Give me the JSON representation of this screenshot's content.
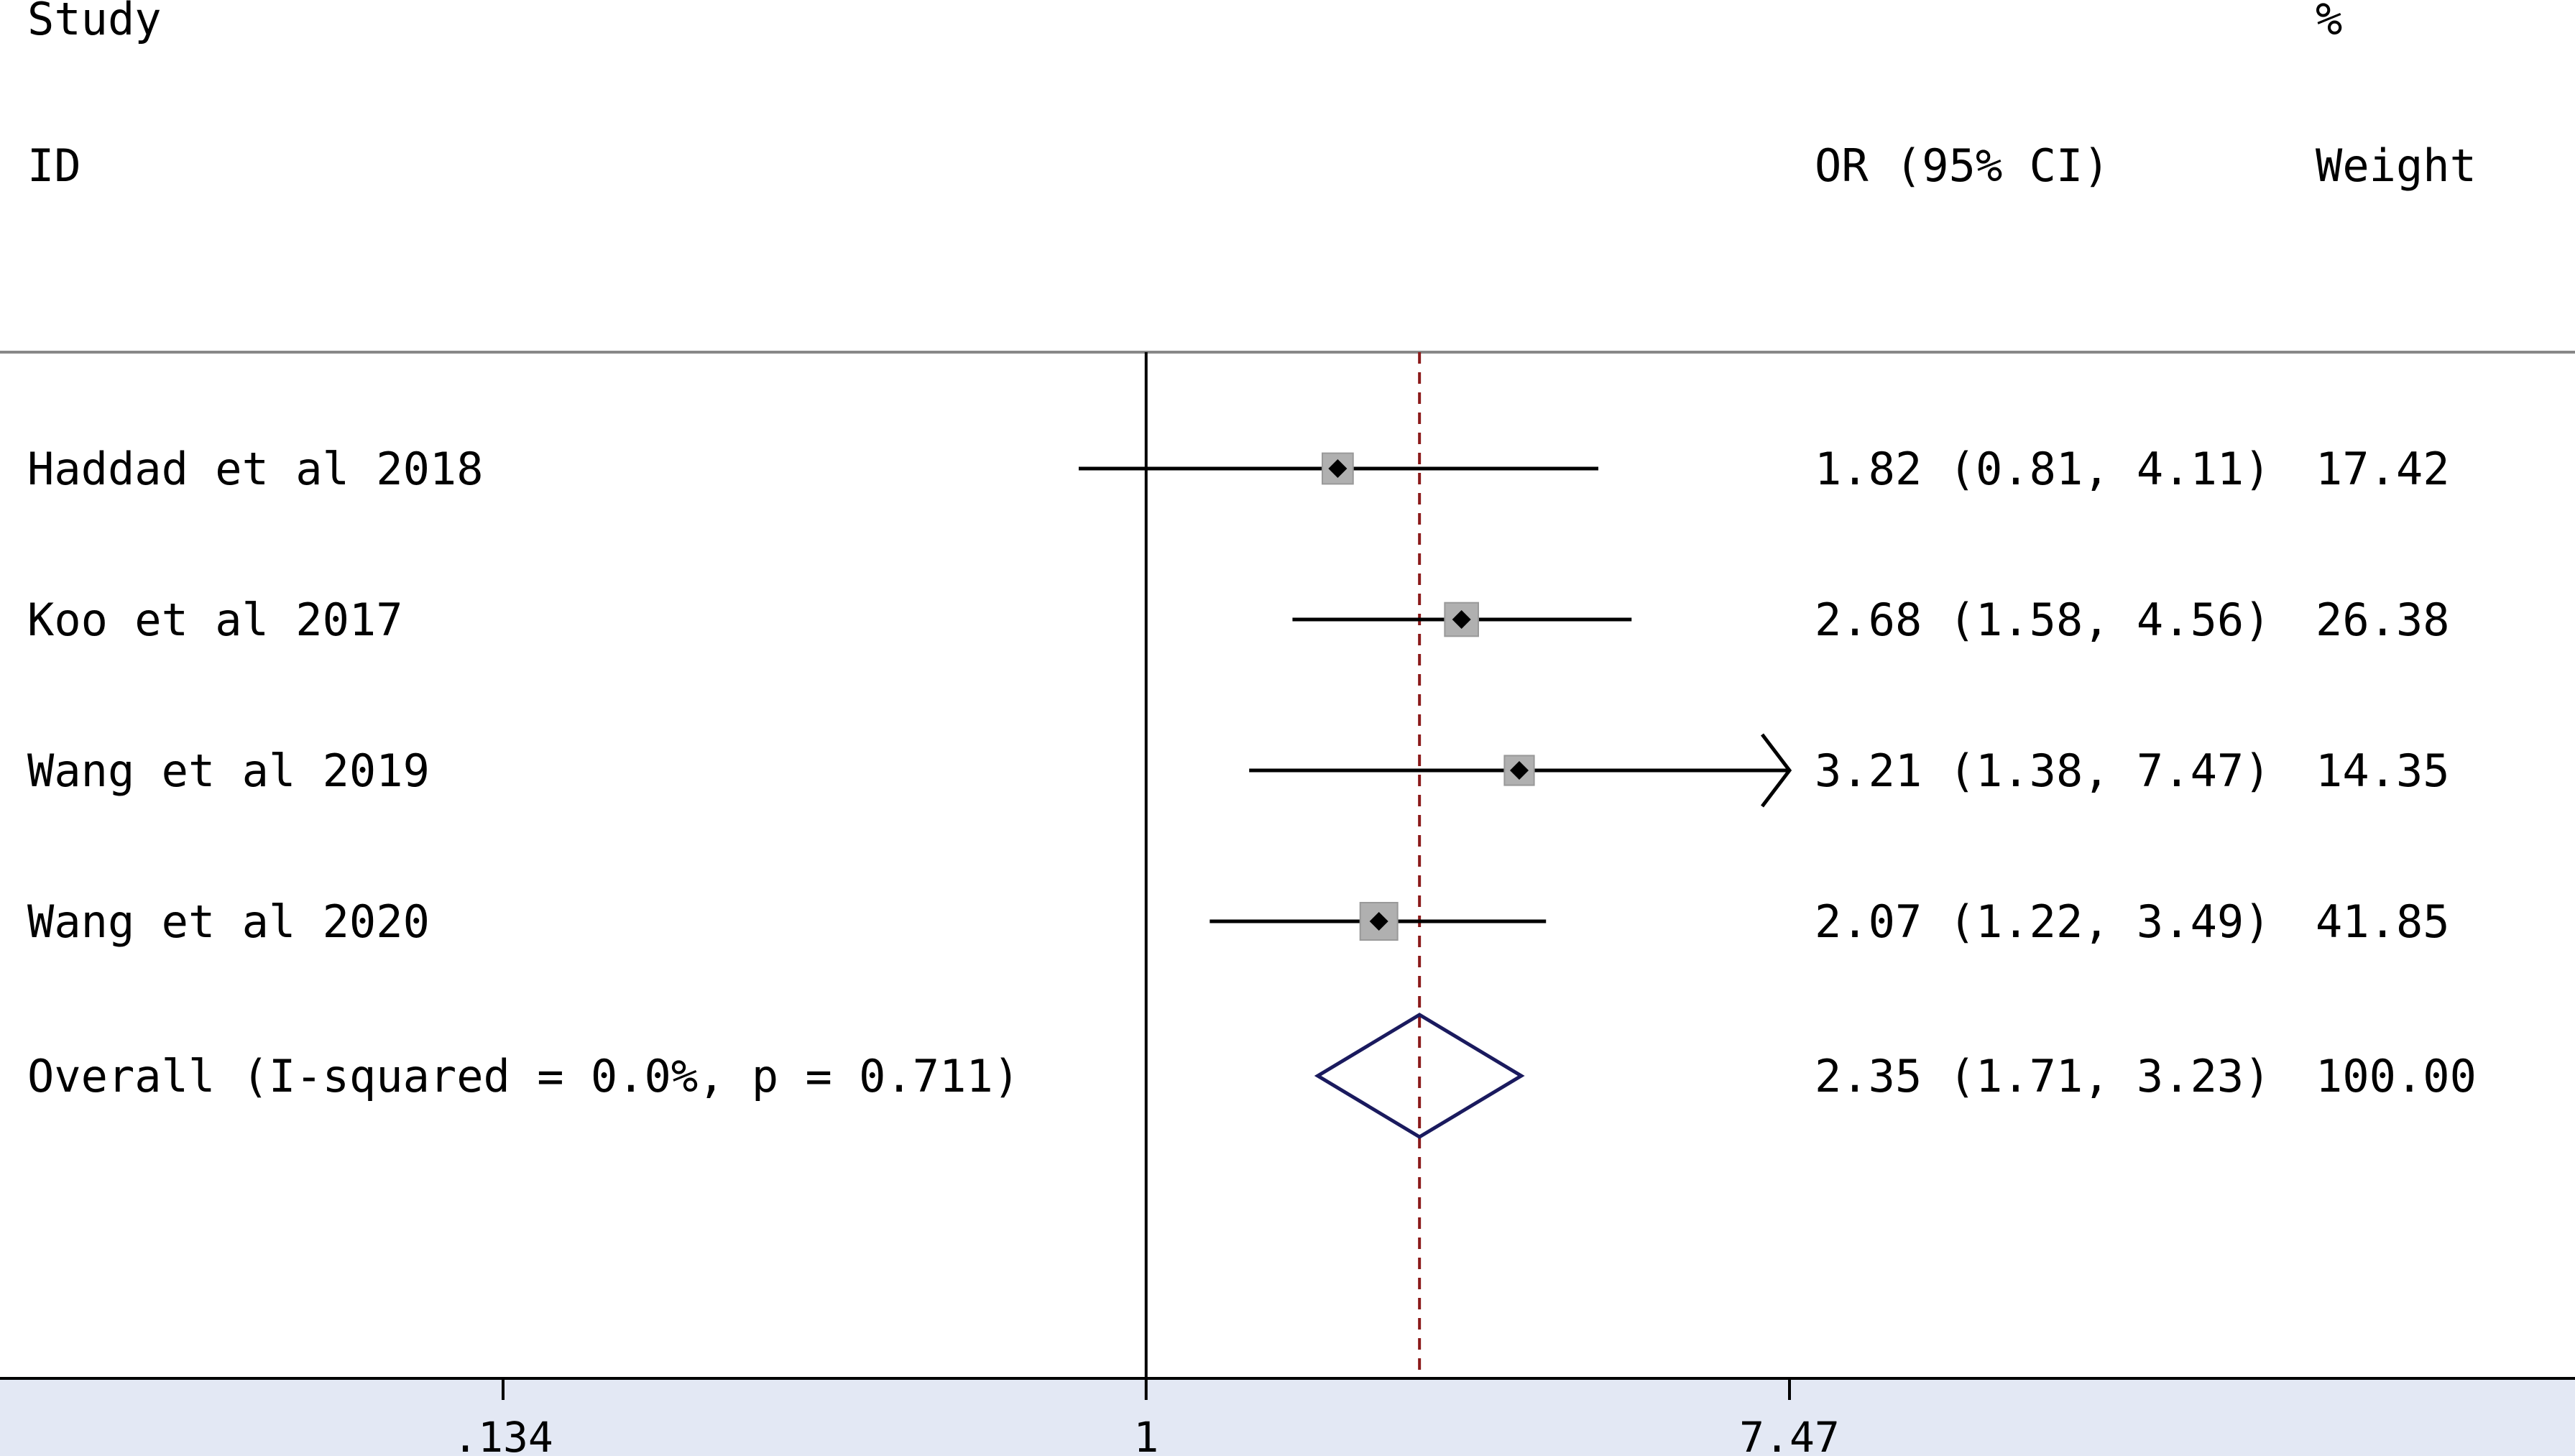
{
  "header": {
    "study_label": "Study",
    "id_label": "ID",
    "effect_label": "OR (95% CI)",
    "pct_label": "%",
    "weight_label": "Weight"
  },
  "chart_data": {
    "type": "forest",
    "effect_measure": "OR",
    "x_scale": "log",
    "null_value": 1,
    "xlim": [
      0.134,
      7.47
    ],
    "xticks": [
      0.134,
      1,
      7.47
    ],
    "xtick_labels": [
      ".134",
      "1",
      "7.47"
    ],
    "overall_line_value": 2.35,
    "studies": [
      {
        "name": "Haddad et al 2018",
        "or": 1.82,
        "lo": 0.81,
        "hi": 4.11,
        "or_text": "1.82 (0.81, 4.11)",
        "weight": 17.42,
        "weight_text": "17.42"
      },
      {
        "name": "Koo et al 2017",
        "or": 2.68,
        "lo": 1.58,
        "hi": 4.56,
        "or_text": "2.68 (1.58, 4.56)",
        "weight": 26.38,
        "weight_text": "26.38"
      },
      {
        "name": "Wang et al 2019",
        "or": 3.21,
        "lo": 1.38,
        "hi": 7.47,
        "or_text": "3.21 (1.38, 7.47)",
        "weight": 14.35,
        "weight_text": "14.35",
        "arrow_right": true
      },
      {
        "name": "Wang et al 2020",
        "or": 2.07,
        "lo": 1.22,
        "hi": 3.49,
        "or_text": "2.07 (1.22, 3.49)",
        "weight": 41.85,
        "weight_text": "41.85"
      }
    ],
    "overall": {
      "name": "Overall  (I-squared = 0.0%, p = 0.711)",
      "or": 2.35,
      "lo": 1.71,
      "hi": 3.23,
      "or_text": "2.35 (1.71, 3.23)",
      "weight": 100.0,
      "weight_text": "100.00"
    },
    "colors": {
      "ci_line": "#000000",
      "weight_box": "#b0b0b0",
      "diamond": "#1a1a5e",
      "overall_line": "#8b1a1a",
      "axis_band": "#e3e8f4"
    }
  }
}
